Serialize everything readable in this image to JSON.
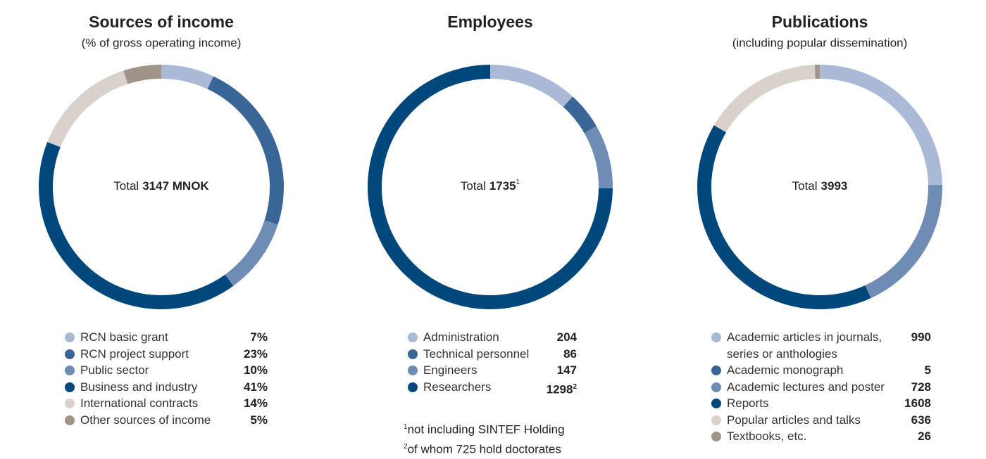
{
  "chart_data": [
    {
      "type": "donut",
      "title": "Sources of income",
      "subtitle": "(% of gross operating income)",
      "center_label": "Total",
      "total": "3147 MNOK",
      "categories": [
        "RCN basic grant",
        "RCN project support",
        "Public sector",
        "Business and industry",
        "International contracts",
        "Other sources of income"
      ],
      "values": [
        7,
        23,
        10,
        41,
        14,
        5
      ],
      "value_labels": [
        "7%",
        "23%",
        "10%",
        "41%",
        "14%",
        "5%"
      ],
      "colors": [
        "#a9b9d6",
        "#3a6597",
        "#6f8cb5",
        "#00477b",
        "#d9d2cb",
        "#a09387"
      ]
    },
    {
      "type": "donut",
      "title": "Employees",
      "center_label": "Total",
      "total": 1735,
      "categories": [
        "Administration",
        "Technical personnel",
        "Engineers",
        "Researchers"
      ],
      "values": [
        204,
        86,
        147,
        1298
      ],
      "colors": [
        "#a9b9d6",
        "#3a6597",
        "#6f8cb5",
        "#00477b"
      ],
      "notes": [
        {
          "marker": "1",
          "text": "not including SINTEF Holding"
        },
        {
          "marker": "2",
          "text": "of whom 725 hold doctorates"
        }
      ]
    },
    {
      "type": "donut",
      "title": "Publications",
      "subtitle": "(including popular dissemination)",
      "center_label": "Total",
      "total": 3993,
      "categories": [
        "Academic articles in journals, series or anthologies",
        "Academic monograph",
        "Academic lectures and poster",
        "Reports",
        "Popular articles and talks",
        "Textbooks, etc."
      ],
      "values": [
        990,
        5,
        728,
        1608,
        636,
        26
      ],
      "colors": [
        "#a9b9d6",
        "#3a6597",
        "#6f8cb5",
        "#00477b",
        "#d9d2cb",
        "#a09387"
      ]
    }
  ]
}
